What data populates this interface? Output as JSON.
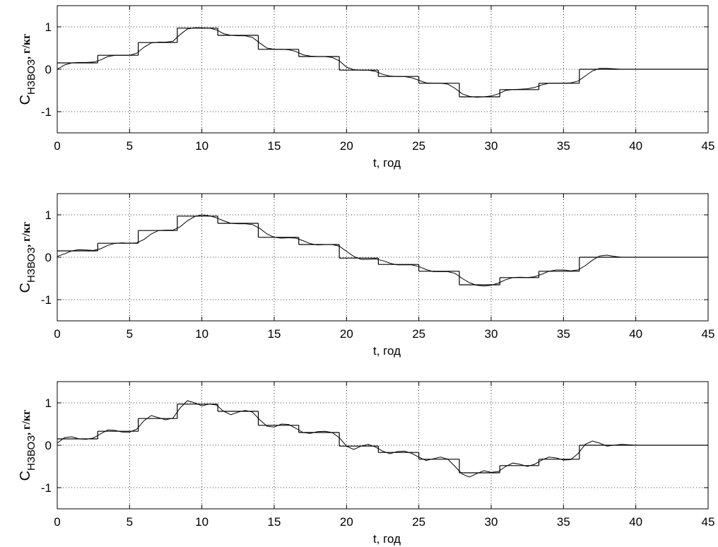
{
  "chart_data": [
    {
      "type": "line",
      "xlim": [
        0,
        45
      ],
      "ylim": [
        -1.5,
        1.5
      ],
      "xticks": [
        0,
        5,
        10,
        15,
        20,
        25,
        30,
        35,
        40,
        45
      ],
      "yticks": [
        -1,
        0,
        1
      ],
      "grid": true,
      "xlabel": "t, год",
      "ylabel": "C",
      "ylabel_sub": "НЗВОЗ",
      "ylabel_unit": ", г/кг",
      "series": [
        {
          "type": "step",
          "color": "#000000",
          "x_edges": [
            0,
            2.8,
            5.6,
            8.3,
            11.1,
            13.9,
            16.7,
            19.5,
            22.2,
            25,
            27.8,
            30.6,
            33.3,
            36.1,
            45
          ],
          "values": [
            0.15,
            0.33,
            0.63,
            0.97,
            0.8,
            0.47,
            0.3,
            -0.02,
            -0.17,
            -0.33,
            -0.65,
            -0.48,
            -0.33,
            0
          ]
        },
        {
          "type": "line",
          "color": "#000000",
          "x": [
            0,
            0.5,
            1,
            1.5,
            2,
            2.5,
            3,
            3.5,
            4,
            4.5,
            5,
            5.5,
            6,
            6.5,
            7,
            7.5,
            8,
            8.5,
            9,
            9.5,
            10,
            10.5,
            11,
            11.5,
            12,
            12.5,
            13,
            13.5,
            14,
            14.5,
            15,
            15.5,
            16,
            16.5,
            17,
            17.5,
            18,
            18.5,
            19,
            19.5,
            20,
            20.5,
            21,
            21.5,
            22,
            22.5,
            23,
            23.5,
            24,
            24.5,
            25,
            25.5,
            26,
            26.5,
            27,
            27.5,
            28,
            28.5,
            29,
            29.5,
            30,
            30.5,
            31,
            31.5,
            32,
            32.5,
            33,
            33.5,
            34,
            34.5,
            35,
            35.5,
            36,
            36.5,
            37,
            37.5,
            38,
            38.5,
            39,
            39.5,
            40,
            45
          ],
          "values": [
            0,
            0.1,
            0.15,
            0.16,
            0.16,
            0.17,
            0.22,
            0.3,
            0.33,
            0.33,
            0.33,
            0.38,
            0.52,
            0.62,
            0.64,
            0.64,
            0.66,
            0.82,
            0.95,
            0.98,
            0.98,
            0.97,
            0.93,
            0.84,
            0.8,
            0.79,
            0.79,
            0.75,
            0.62,
            0.5,
            0.47,
            0.47,
            0.46,
            0.42,
            0.34,
            0.31,
            0.3,
            0.3,
            0.28,
            0.2,
            0.05,
            -0.01,
            -0.02,
            -0.02,
            -0.05,
            -0.12,
            -0.16,
            -0.17,
            -0.17,
            -0.2,
            -0.26,
            -0.32,
            -0.33,
            -0.33,
            -0.35,
            -0.45,
            -0.58,
            -0.64,
            -0.66,
            -0.65,
            -0.63,
            -0.58,
            -0.5,
            -0.48,
            -0.47,
            -0.46,
            -0.43,
            -0.37,
            -0.33,
            -0.33,
            -0.33,
            -0.32,
            -0.28,
            -0.16,
            -0.04,
            0.02,
            0.02,
            0.01,
            0,
            0,
            0,
            0
          ]
        }
      ]
    },
    {
      "type": "line",
      "xlim": [
        0,
        45
      ],
      "ylim": [
        -1.5,
        1.5
      ],
      "xticks": [
        0,
        5,
        10,
        15,
        20,
        25,
        30,
        35,
        40,
        45
      ],
      "yticks": [
        -1,
        0,
        1
      ],
      "grid": true,
      "xlabel": "t, год",
      "ylabel": "C",
      "ylabel_sub": "НЗВОЗ",
      "ylabel_unit": ", г/кг",
      "series": [
        {
          "type": "step",
          "color": "#000000",
          "x_edges": [
            0,
            2.8,
            5.6,
            8.3,
            11.1,
            13.9,
            16.7,
            19.5,
            22.2,
            25,
            27.8,
            30.6,
            33.3,
            36.1,
            45
          ],
          "values": [
            0.15,
            0.33,
            0.63,
            0.97,
            0.8,
            0.47,
            0.3,
            -0.02,
            -0.17,
            -0.33,
            -0.65,
            -0.48,
            -0.33,
            0
          ]
        },
        {
          "type": "line",
          "color": "#000000",
          "x": [
            0,
            0.5,
            1,
            1.5,
            2,
            2.5,
            3,
            3.5,
            4,
            4.5,
            5,
            5.5,
            6,
            6.5,
            7,
            7.5,
            8,
            8.5,
            9,
            9.5,
            10,
            10.5,
            11,
            11.5,
            12,
            12.5,
            13,
            13.5,
            14,
            14.5,
            15,
            15.5,
            16,
            16.5,
            17,
            17.5,
            18,
            18.5,
            19,
            19.5,
            20,
            20.5,
            21,
            21.5,
            22,
            22.5,
            23,
            23.5,
            24,
            24.5,
            25,
            25.5,
            26,
            26.5,
            27,
            27.5,
            28,
            28.5,
            29,
            29.5,
            30,
            30.5,
            31,
            31.5,
            32,
            32.5,
            33,
            33.5,
            34,
            34.5,
            35,
            35.5,
            36,
            36.5,
            37,
            37.5,
            38,
            38.5,
            39,
            39.5,
            40,
            45
          ],
          "values": [
            0.02,
            0.08,
            0.15,
            0.18,
            0.17,
            0.16,
            0.2,
            0.28,
            0.33,
            0.34,
            0.33,
            0.34,
            0.42,
            0.55,
            0.63,
            0.64,
            0.64,
            0.72,
            0.86,
            0.96,
            1.0,
            0.98,
            0.93,
            0.86,
            0.8,
            0.79,
            0.79,
            0.77,
            0.68,
            0.55,
            0.47,
            0.45,
            0.46,
            0.45,
            0.39,
            0.32,
            0.29,
            0.3,
            0.3,
            0.26,
            0.14,
            0.02,
            -0.05,
            -0.05,
            -0.04,
            -0.08,
            -0.14,
            -0.18,
            -0.18,
            -0.18,
            -0.22,
            -0.29,
            -0.34,
            -0.34,
            -0.34,
            -0.38,
            -0.5,
            -0.6,
            -0.66,
            -0.68,
            -0.66,
            -0.61,
            -0.53,
            -0.48,
            -0.47,
            -0.48,
            -0.46,
            -0.4,
            -0.33,
            -0.3,
            -0.3,
            -0.32,
            -0.3,
            -0.2,
            -0.07,
            0.03,
            0.05,
            0.02,
            0,
            0,
            0,
            0
          ]
        }
      ]
    },
    {
      "type": "line",
      "xlim": [
        0,
        45
      ],
      "ylim": [
        -1.5,
        1.5
      ],
      "xticks": [
        0,
        5,
        10,
        15,
        20,
        25,
        30,
        35,
        40,
        45
      ],
      "yticks": [
        -1,
        0,
        1
      ],
      "grid": true,
      "xlabel": "t, год",
      "ylabel": "C",
      "ylabel_sub": "НЗВОЗ",
      "ylabel_unit": ", г/кг",
      "series": [
        {
          "type": "step",
          "color": "#000000",
          "x_edges": [
            0,
            2.8,
            5.6,
            8.3,
            11.1,
            13.9,
            16.7,
            19.5,
            22.2,
            25,
            27.8,
            30.6,
            33.3,
            36.1,
            45
          ],
          "values": [
            0.15,
            0.33,
            0.63,
            0.97,
            0.8,
            0.47,
            0.3,
            -0.02,
            -0.17,
            -0.33,
            -0.65,
            -0.48,
            -0.33,
            0
          ]
        },
        {
          "type": "line",
          "color": "#000000",
          "x": [
            0,
            0.5,
            1,
            1.5,
            2,
            2.5,
            3,
            3.5,
            4,
            4.5,
            5,
            5.5,
            6,
            6.5,
            7,
            7.5,
            8,
            8.5,
            9,
            9.5,
            10,
            10.5,
            11,
            11.5,
            12,
            12.5,
            13,
            13.5,
            14,
            14.5,
            15,
            15.5,
            16,
            16.5,
            17,
            17.5,
            18,
            18.5,
            19,
            19.5,
            20,
            20.5,
            21,
            21.5,
            22,
            22.5,
            23,
            23.5,
            24,
            24.5,
            25,
            25.5,
            26,
            26.5,
            27,
            27.5,
            28,
            28.5,
            29,
            29.5,
            30,
            30.5,
            31,
            31.5,
            32,
            32.5,
            33,
            33.5,
            34,
            34.5,
            35,
            35.5,
            36,
            36.5,
            37,
            37.5,
            38,
            38.5,
            39,
            39.5,
            40,
            45
          ],
          "values": [
            0.05,
            0.18,
            0.2,
            0.15,
            0.14,
            0.17,
            0.27,
            0.36,
            0.35,
            0.31,
            0.31,
            0.38,
            0.58,
            0.7,
            0.65,
            0.6,
            0.64,
            0.88,
            1.05,
            1.0,
            0.93,
            0.97,
            0.95,
            0.8,
            0.72,
            0.78,
            0.82,
            0.78,
            0.6,
            0.45,
            0.43,
            0.5,
            0.49,
            0.4,
            0.3,
            0.28,
            0.32,
            0.33,
            0.3,
            0.18,
            -0.02,
            -0.1,
            -0.02,
            0.02,
            -0.04,
            -0.14,
            -0.2,
            -0.15,
            -0.14,
            -0.19,
            -0.28,
            -0.36,
            -0.32,
            -0.28,
            -0.33,
            -0.5,
            -0.68,
            -0.75,
            -0.67,
            -0.6,
            -0.64,
            -0.62,
            -0.5,
            -0.42,
            -0.45,
            -0.5,
            -0.45,
            -0.35,
            -0.28,
            -0.3,
            -0.35,
            -0.34,
            -0.2,
            0.02,
            0.1,
            0.05,
            -0.02,
            0,
            0.02,
            0.01,
            0,
            0
          ]
        }
      ]
    }
  ]
}
